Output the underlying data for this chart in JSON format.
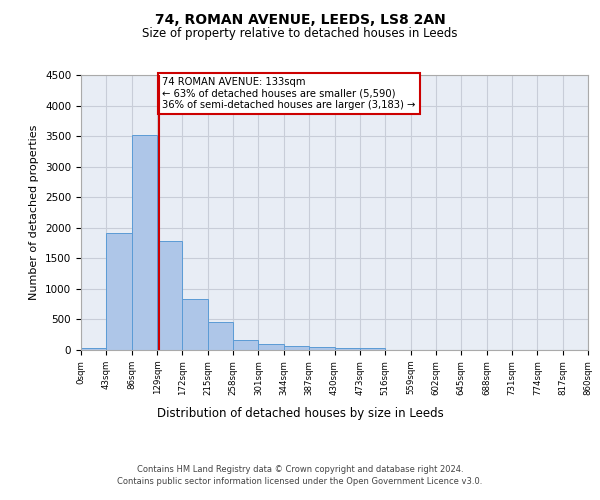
{
  "title1": "74, ROMAN AVENUE, LEEDS, LS8 2AN",
  "title2": "Size of property relative to detached houses in Leeds",
  "xlabel": "Distribution of detached houses by size in Leeds",
  "ylabel": "Number of detached properties",
  "bar_edges": [
    0,
    43,
    86,
    129,
    172,
    215,
    258,
    301,
    344,
    387,
    430,
    473,
    516,
    559,
    602,
    645,
    688,
    731,
    774,
    817,
    860
  ],
  "bar_values": [
    40,
    1920,
    3510,
    1780,
    840,
    460,
    160,
    100,
    65,
    55,
    40,
    35,
    0,
    0,
    0,
    0,
    0,
    0,
    0,
    0
  ],
  "bar_color": "#aec6e8",
  "bar_edgecolor": "#5b9bd5",
  "vline_x": 133,
  "vline_color": "#cc0000",
  "annotation_text": "74 ROMAN AVENUE: 133sqm\n← 63% of detached houses are smaller (5,590)\n36% of semi-detached houses are larger (3,183) →",
  "annotation_box_facecolor": "white",
  "annotation_box_edgecolor": "#cc0000",
  "ylim": [
    0,
    4500
  ],
  "yticks": [
    0,
    500,
    1000,
    1500,
    2000,
    2500,
    3000,
    3500,
    4000,
    4500
  ],
  "grid_color": "#c8cdd8",
  "bg_color": "#e8edf5",
  "footer1": "Contains HM Land Registry data © Crown copyright and database right 2024.",
  "footer2": "Contains public sector information licensed under the Open Government Licence v3.0."
}
